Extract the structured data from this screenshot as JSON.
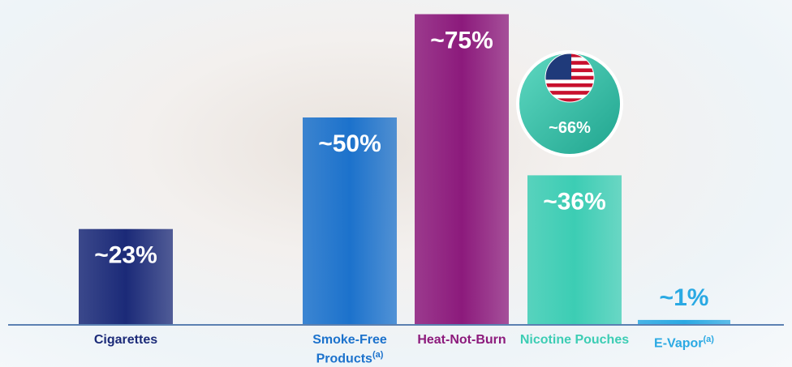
{
  "chart_data": {
    "type": "bar",
    "categories": [
      "Cigarettes",
      "Smoke-Free Products",
      "Heat-Not-Burn",
      "Nicotine Pouches",
      "E-Vapor"
    ],
    "category_notes": [
      null,
      "(a)",
      null,
      null,
      "(a)"
    ],
    "values": [
      23,
      50,
      75,
      36,
      1
    ],
    "value_labels": [
      "~23%",
      "~50%",
      "~75%",
      "~36%",
      "~1%"
    ],
    "colors": [
      "#1b2a78",
      "#1c72cc",
      "#8c1a7c",
      "#3ccdb4",
      "#2aa9e3"
    ],
    "annotation": {
      "value": 66,
      "label": "~66%",
      "category": "Nicotine Pouches"
    }
  }
}
